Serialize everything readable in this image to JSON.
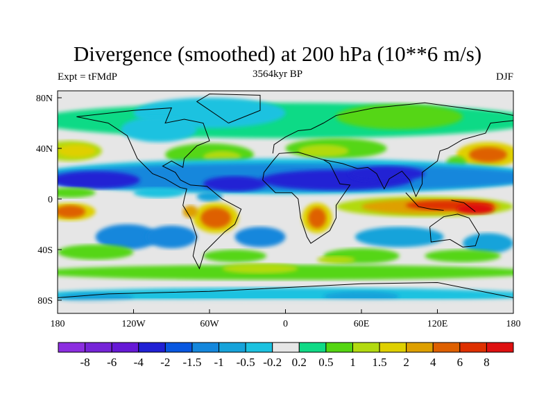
{
  "chart_data": {
    "type": "heatmap",
    "subtype": "filled-contour-map",
    "title": "Divergence (smoothed) at 200 hPa (10**6 m/s)",
    "subtitle_left": "Expt = tFMdP",
    "subtitle_center": "3564kyr BP",
    "subtitle_right": "DJF",
    "x_ticks": [
      "180",
      "120W",
      "60W",
      "0",
      "60E",
      "120E",
      "180"
    ],
    "x_tick_values": [
      -180,
      -120,
      -60,
      0,
      60,
      120,
      180
    ],
    "y_ticks": [
      "80N",
      "40N",
      "0",
      "40S",
      "80S"
    ],
    "y_tick_values": [
      80,
      40,
      0,
      -40,
      -80
    ],
    "xlim": [
      -180,
      180
    ],
    "ylim": [
      -85,
      85
    ],
    "colorbar": {
      "levels": [
        "-8",
        "-6",
        "-4",
        "-2",
        "-1.5",
        "-1",
        "-0.5",
        "-0.2",
        "0.2",
        "0.5",
        "1",
        "1.5",
        "2",
        "4",
        "6",
        "8"
      ],
      "colors": [
        "#8c2ee0",
        "#7624d8",
        "#6619d6",
        "#2020d4",
        "#0857e0",
        "#1487dc",
        "#16a3da",
        "#1cc2e0",
        "#e6e6e6",
        "#10da86",
        "#55d612",
        "#b2da10",
        "#dfd000",
        "#dea000",
        "#de6000",
        "#de3000",
        "#de1010"
      ]
    },
    "features": [
      {
        "region": "tropical northern band 0-30N",
        "sign": "convergence",
        "min_level": "-4"
      },
      {
        "region": "Maritime Continent / Indian Ocean 0-15S",
        "sign": "divergence",
        "max_level": "6"
      },
      {
        "region": "South America 10-25S",
        "sign": "divergence",
        "max_level": "4"
      },
      {
        "region": "southern Africa 5-25S",
        "sign": "divergence",
        "max_level": "4"
      },
      {
        "region": "North Pacific 35N",
        "sign": "divergence",
        "max_level": "2"
      }
    ]
  }
}
